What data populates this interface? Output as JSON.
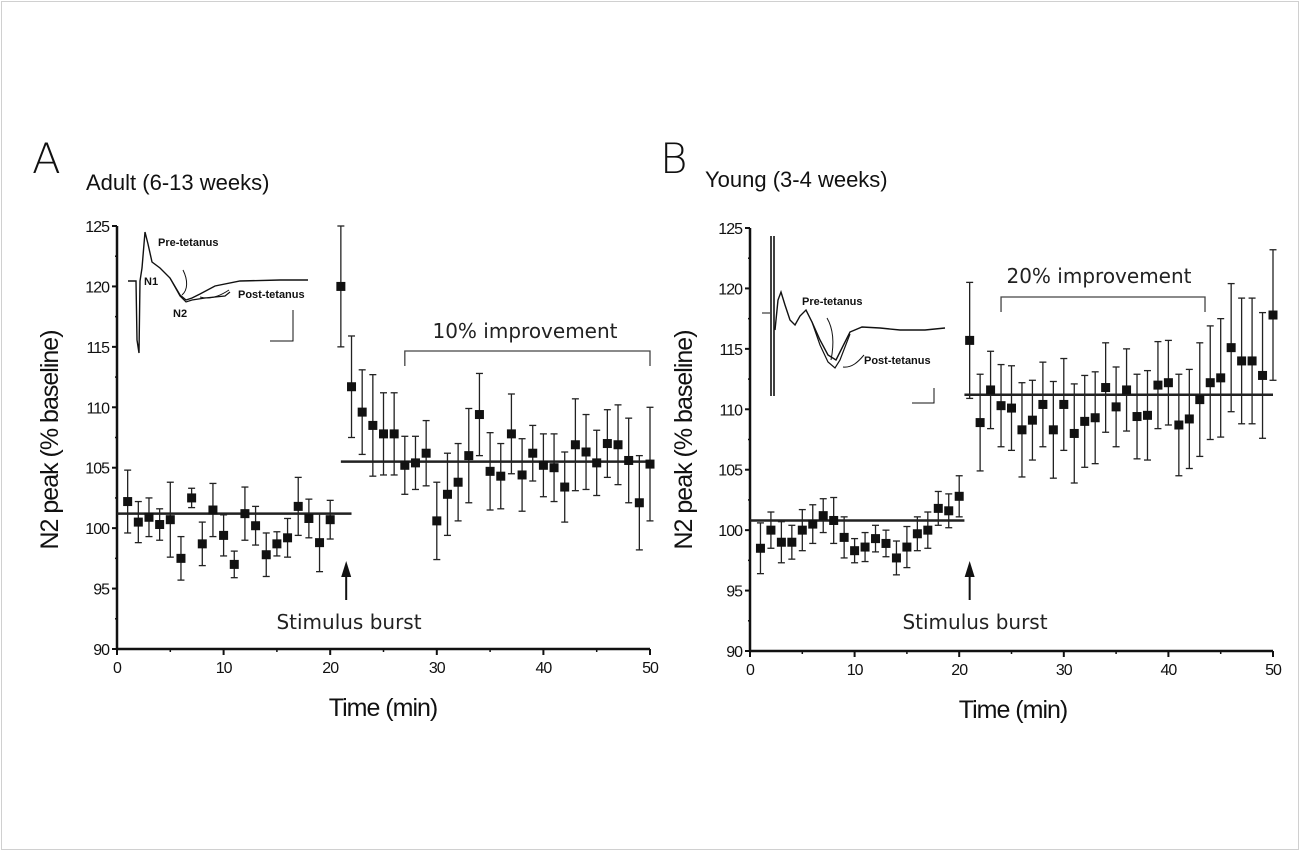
{
  "chart_data": [
    {
      "type": "scatter",
      "panel_letter": "A",
      "title": "Adult (6-13 weeks)",
      "xlabel": "Time (min)",
      "ylabel": "N2 peak (% baseline)",
      "xlim": [
        0,
        50
      ],
      "ylim": [
        90,
        125
      ],
      "xticks": [
        0,
        10,
        20,
        30,
        40,
        50
      ],
      "yticks": [
        90,
        95,
        100,
        105,
        110,
        115,
        120,
        125
      ],
      "series": [
        {
          "name": "N2 peak",
          "x": [
            1,
            2,
            3,
            4,
            5,
            6,
            7,
            8,
            9,
            10,
            11,
            12,
            13,
            14,
            15,
            16,
            17,
            18,
            19,
            20,
            21,
            22,
            23,
            24,
            25,
            26,
            27,
            28,
            29,
            30,
            31,
            32,
            33,
            34,
            35,
            36,
            37,
            38,
            39,
            40,
            41,
            42,
            43,
            44,
            45,
            46,
            47,
            48,
            49,
            50
          ],
          "y": [
            102.2,
            100.5,
            100.9,
            100.3,
            100.7,
            97.5,
            102.5,
            98.7,
            101.5,
            99.4,
            97.0,
            101.2,
            100.2,
            97.8,
            98.7,
            99.2,
            101.8,
            100.8,
            98.8,
            100.7,
            120.0,
            111.7,
            109.6,
            108.5,
            107.8,
            107.8,
            105.2,
            105.4,
            106.2,
            100.6,
            102.8,
            103.8,
            106.0,
            109.4,
            104.7,
            104.3,
            107.8,
            104.4,
            106.2,
            105.2,
            105.0,
            103.4,
            106.9,
            106.3,
            105.4,
            107.0,
            106.9,
            105.6,
            102.1,
            105.3
          ],
          "err": [
            2.6,
            1.7,
            1.6,
            1.3,
            3.1,
            1.8,
            0.8,
            1.8,
            2.2,
            1.7,
            1.1,
            2.2,
            1.6,
            1.8,
            1.0,
            1.6,
            2.4,
            1.6,
            2.4,
            1.6,
            5.0,
            4.2,
            3.5,
            4.2,
            3.4,
            3.4,
            2.4,
            2.2,
            2.7,
            3.2,
            3.4,
            3.2,
            3.9,
            3.4,
            3.2,
            2.7,
            3.3,
            3.0,
            2.3,
            2.6,
            2.8,
            2.9,
            3.8,
            3.1,
            2.7,
            2.8,
            3.3,
            3.5,
            3.9,
            4.7
          ]
        }
      ],
      "reference_lines": [
        {
          "name": "baseline mean",
          "value": 101.2,
          "x_range": [
            0,
            22
          ]
        },
        {
          "name": "post-tetanus mean",
          "value": 105.5,
          "x_range": [
            21,
            50
          ]
        }
      ],
      "annotations": {
        "arrow_label": "Stimulus burst",
        "arrow_x": 21.5,
        "bracket_label": "10% improvement",
        "bracket_x_range": [
          27,
          50
        ]
      },
      "inset": {
        "labels": [
          "Pre-tetanus",
          "Post-tetanus",
          "N1",
          "N2"
        ]
      }
    },
    {
      "type": "scatter",
      "panel_letter": "B",
      "title": "Young (3-4 weeks)",
      "xlabel": "Time (min)",
      "ylabel": "N2 peak (% baseline)",
      "xlim": [
        0,
        50
      ],
      "ylim": [
        90,
        125
      ],
      "xticks": [
        0,
        10,
        20,
        30,
        40,
        50
      ],
      "yticks": [
        90,
        95,
        100,
        105,
        110,
        115,
        120,
        125
      ],
      "series": [
        {
          "name": "N2 peak",
          "x": [
            1,
            2,
            3,
            4,
            5,
            6,
            7,
            8,
            9,
            10,
            11,
            12,
            13,
            14,
            15,
            16,
            17,
            18,
            19,
            20,
            21,
            22,
            23,
            24,
            25,
            26,
            27,
            28,
            29,
            30,
            31,
            32,
            33,
            34,
            35,
            36,
            37,
            38,
            39,
            40,
            41,
            42,
            43,
            44,
            45,
            46,
            47,
            48,
            49,
            50
          ],
          "y": [
            98.5,
            100.0,
            99.0,
            99.0,
            100.0,
            100.5,
            101.2,
            100.8,
            99.4,
            98.3,
            98.6,
            99.3,
            98.9,
            97.7,
            98.6,
            99.7,
            100.0,
            101.8,
            101.6,
            102.8,
            115.7,
            108.9,
            111.6,
            110.3,
            110.1,
            108.3,
            109.1,
            110.4,
            108.3,
            110.4,
            108.0,
            109.0,
            109.3,
            111.8,
            110.2,
            111.6,
            109.4,
            109.5,
            112.0,
            112.2,
            108.7,
            109.2,
            110.8,
            112.2,
            112.6,
            115.1,
            114.0,
            114.0,
            112.8,
            117.8
          ],
          "err": [
            2.1,
            1.5,
            1.7,
            1.4,
            1.7,
            1.6,
            1.4,
            1.9,
            1.7,
            1.0,
            1.2,
            1.1,
            1.1,
            1.4,
            1.7,
            1.4,
            1.5,
            1.4,
            1.4,
            1.7,
            4.8,
            4.0,
            3.2,
            3.4,
            3.5,
            3.9,
            3.3,
            3.5,
            4.0,
            3.8,
            4.1,
            3.8,
            3.8,
            3.7,
            3.3,
            3.4,
            3.5,
            3.7,
            3.6,
            3.5,
            4.2,
            4.1,
            4.7,
            4.7,
            4.9,
            5.3,
            5.2,
            5.2,
            5.2,
            5.4
          ]
        }
      ],
      "reference_lines": [
        {
          "name": "baseline mean",
          "value": 100.8,
          "x_range": [
            0,
            20.5
          ]
        },
        {
          "name": "post-tetanus mean",
          "value": 111.2,
          "x_range": [
            20.5,
            50
          ]
        }
      ],
      "annotations": {
        "arrow_label": "Stimulus burst",
        "arrow_x": 21,
        "bracket_label": "20% improvement",
        "bracket_x_range": [
          24,
          43.5
        ]
      },
      "inset": {
        "labels": [
          "Pre-tetanus",
          "Post-tetanus"
        ]
      }
    }
  ]
}
